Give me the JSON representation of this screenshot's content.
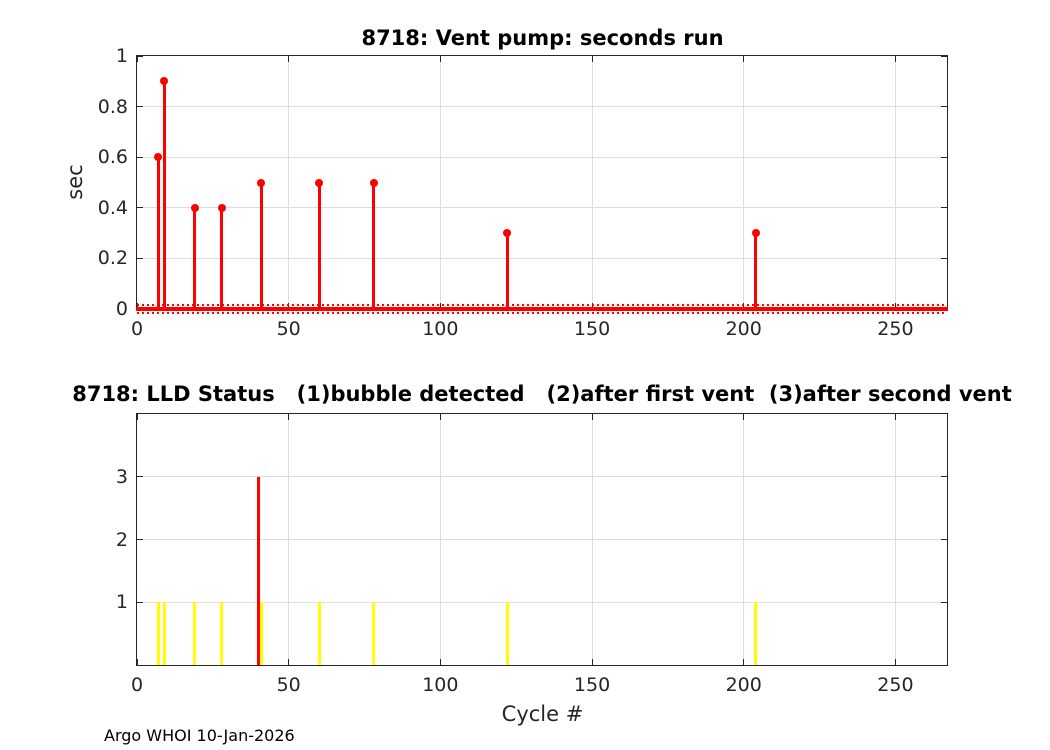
{
  "figure": {
    "footer": "Argo WHOI 10-Jan-2026"
  },
  "colors": {
    "stem_red": "#ff0000",
    "status_yellow": "#ffff00",
    "status_red": "#ff0000",
    "grid_gray": "#dedede",
    "axis_gray": "#262626"
  },
  "chart_data": [
    {
      "type": "stem",
      "title": "8718: Vent pump: seconds run",
      "xlabel": "",
      "ylabel": "sec",
      "xlim": [
        0,
        267
      ],
      "ylim": [
        0,
        1
      ],
      "xticks": [
        0,
        50,
        100,
        150,
        200,
        250
      ],
      "yticks": [
        0,
        0.2,
        0.4,
        0.6,
        0.8,
        1
      ],
      "grid": true,
      "legend": "none",
      "series_color": "#ff0000",
      "points": [
        {
          "x": 7,
          "y": 0.6
        },
        {
          "x": 9,
          "y": 0.9
        },
        {
          "x": 19,
          "y": 0.4
        },
        {
          "x": 28,
          "y": 0.4
        },
        {
          "x": 41,
          "y": 0.5
        },
        {
          "x": 60,
          "y": 0.5
        },
        {
          "x": 78,
          "y": 0.5
        },
        {
          "x": 122,
          "y": 0.3
        },
        {
          "x": 204,
          "y": 0.3
        }
      ],
      "baseline": {
        "value": 0,
        "note": "dense red markers at 0 sec for all other cycles across full x range"
      }
    },
    {
      "type": "bar",
      "title": "8718: LLD Status   (1)bubble detected   (2)after first vent  (3)after second vent",
      "xlabel": "Cycle #",
      "ylabel": "",
      "xlim": [
        0,
        267
      ],
      "ylim": [
        0,
        4
      ],
      "xticks": [
        0,
        50,
        100,
        150,
        200,
        250
      ],
      "yticks": [
        1,
        2,
        3
      ],
      "grid": true,
      "legend": "none",
      "bars": [
        {
          "x": 7,
          "value": 1,
          "color": "#ffff00"
        },
        {
          "x": 9,
          "value": 1,
          "color": "#ffff00"
        },
        {
          "x": 19,
          "value": 1,
          "color": "#ffff00"
        },
        {
          "x": 28,
          "value": 1,
          "color": "#ffff00"
        },
        {
          "x": 40,
          "value": 3,
          "color": "#ff0000"
        },
        {
          "x": 41,
          "value": 1,
          "color": "#ffff00"
        },
        {
          "x": 60,
          "value": 1,
          "color": "#ffff00"
        },
        {
          "x": 78,
          "value": 1,
          "color": "#ffff00"
        },
        {
          "x": 122,
          "value": 1,
          "color": "#ffff00"
        },
        {
          "x": 204,
          "value": 1,
          "color": "#ffff00"
        }
      ]
    }
  ]
}
